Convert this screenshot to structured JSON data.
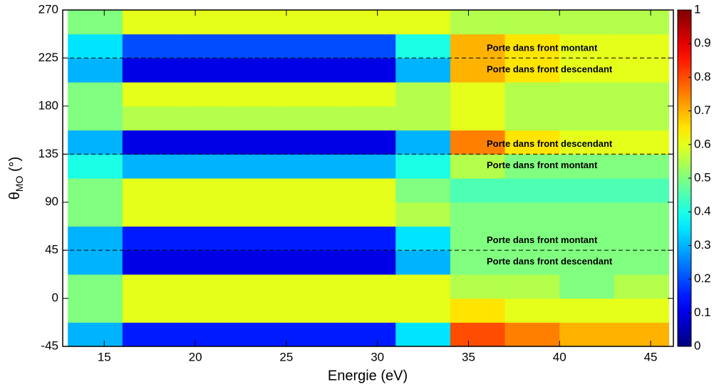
{
  "chart_data": {
    "type": "heatmap",
    "xlabel": "Energie (eV)",
    "ylabel": {
      "main": "θ",
      "sub": "MO",
      "rest": " (°)"
    },
    "xlim": [
      12.72,
      46.25
    ],
    "ylim": [
      -45,
      270
    ],
    "xticks": [
      15,
      20,
      25,
      30,
      35,
      40,
      45
    ],
    "yticks": [
      -45,
      0,
      45,
      90,
      135,
      180,
      225,
      270
    ],
    "colormap": "jet",
    "clim": [
      0,
      1
    ],
    "cticks": [
      0,
      0.1,
      0.2,
      0.3,
      0.4,
      0.5,
      0.6,
      0.7,
      0.8,
      0.9,
      1
    ],
    "x_edges": [
      13,
      16,
      19,
      22,
      25,
      28,
      31,
      34,
      37,
      40,
      43,
      46
    ],
    "y_edges": [
      -45,
      -22.5,
      0,
      22.5,
      45,
      67.5,
      90,
      112.5,
      135,
      157.5,
      180,
      202.5,
      225,
      247.5,
      270
    ],
    "z": [
      [
        0.3,
        0.15,
        0.15,
        0.15,
        0.15,
        0.15,
        0.35,
        0.8,
        0.75,
        0.7,
        0.7
      ],
      [
        0.5,
        0.6,
        0.6,
        0.6,
        0.6,
        0.6,
        0.6,
        0.65,
        0.6,
        0.6,
        0.6
      ],
      [
        0.5,
        0.6,
        0.6,
        0.6,
        0.6,
        0.6,
        0.6,
        0.55,
        0.55,
        0.5,
        0.55
      ],
      [
        0.3,
        0.1,
        0.1,
        0.1,
        0.1,
        0.1,
        0.3,
        0.5,
        0.5,
        0.5,
        0.5
      ],
      [
        0.3,
        0.15,
        0.15,
        0.15,
        0.15,
        0.15,
        0.35,
        0.5,
        0.5,
        0.5,
        0.5
      ],
      [
        0.5,
        0.6,
        0.6,
        0.6,
        0.6,
        0.6,
        0.55,
        0.5,
        0.5,
        0.5,
        0.5
      ],
      [
        0.5,
        0.6,
        0.6,
        0.6,
        0.6,
        0.6,
        0.5,
        0.45,
        0.45,
        0.45,
        0.45
      ],
      [
        0.4,
        0.3,
        0.3,
        0.3,
        0.3,
        0.3,
        0.4,
        0.55,
        0.5,
        0.5,
        0.5
      ],
      [
        0.3,
        0.1,
        0.1,
        0.1,
        0.1,
        0.1,
        0.3,
        0.75,
        0.65,
        0.6,
        0.6
      ],
      [
        0.5,
        0.55,
        0.55,
        0.55,
        0.55,
        0.55,
        0.55,
        0.6,
        0.55,
        0.55,
        0.55
      ],
      [
        0.5,
        0.6,
        0.6,
        0.6,
        0.6,
        0.6,
        0.55,
        0.6,
        0.55,
        0.55,
        0.55
      ],
      [
        0.3,
        0.1,
        0.1,
        0.1,
        0.1,
        0.1,
        0.3,
        0.7,
        0.65,
        0.6,
        0.6
      ],
      [
        0.35,
        0.2,
        0.2,
        0.2,
        0.2,
        0.2,
        0.4,
        0.7,
        0.65,
        0.6,
        0.6
      ],
      [
        0.5,
        0.6,
        0.6,
        0.6,
        0.6,
        0.6,
        0.6,
        0.55,
        0.55,
        0.55,
        0.55
      ]
    ],
    "hlines": [
      225,
      135,
      45
    ],
    "annotations": [
      {
        "text": "Porte dans front montant",
        "x": 36,
        "y": 234
      },
      {
        "text": "Porte dans front descendant",
        "x": 36,
        "y": 214
      },
      {
        "text": "Porte dans front descendant",
        "x": 36,
        "y": 144
      },
      {
        "text": "Porte dans front montant",
        "x": 36,
        "y": 124
      },
      {
        "text": "Porte dans front montant",
        "x": 36,
        "y": 54
      },
      {
        "text": "Porte dans front descendant",
        "x": 36,
        "y": 34
      }
    ]
  }
}
